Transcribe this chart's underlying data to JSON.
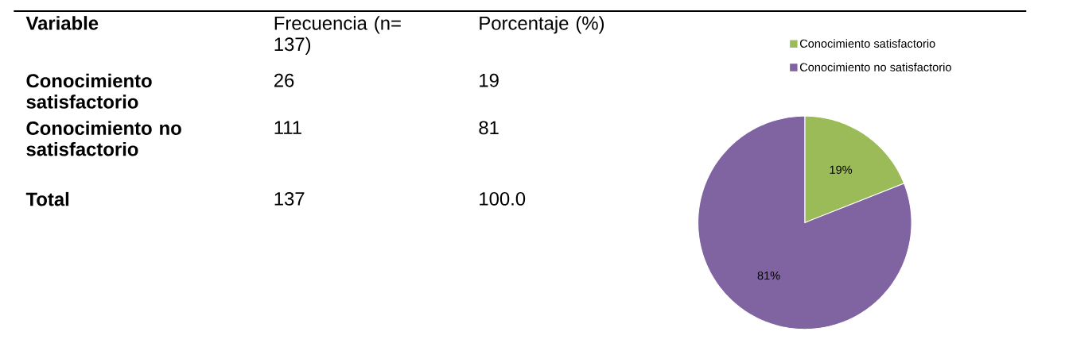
{
  "chart_data": [
    {
      "type": "other",
      "annotations": [
        "Variable",
        "Frecuencia (n= 137)",
        "Porcentaje (%)",
        "Conocimiento satisfactorio",
        "26",
        "19",
        "Conocimiento no satisfactorio",
        "111",
        "81",
        "Total",
        "137",
        "100.0"
      ]
    },
    {
      "type": "pie",
      "categories": [
        "Conocimiento satisfactorio",
        "Conocimiento no satisfactorio"
      ],
      "values": [
        19,
        81
      ],
      "colors": [
        "#9bbb59",
        "#8064a2"
      ],
      "value_labels": [
        "19%",
        "81%"
      ],
      "legend": "top right"
    }
  ]
}
